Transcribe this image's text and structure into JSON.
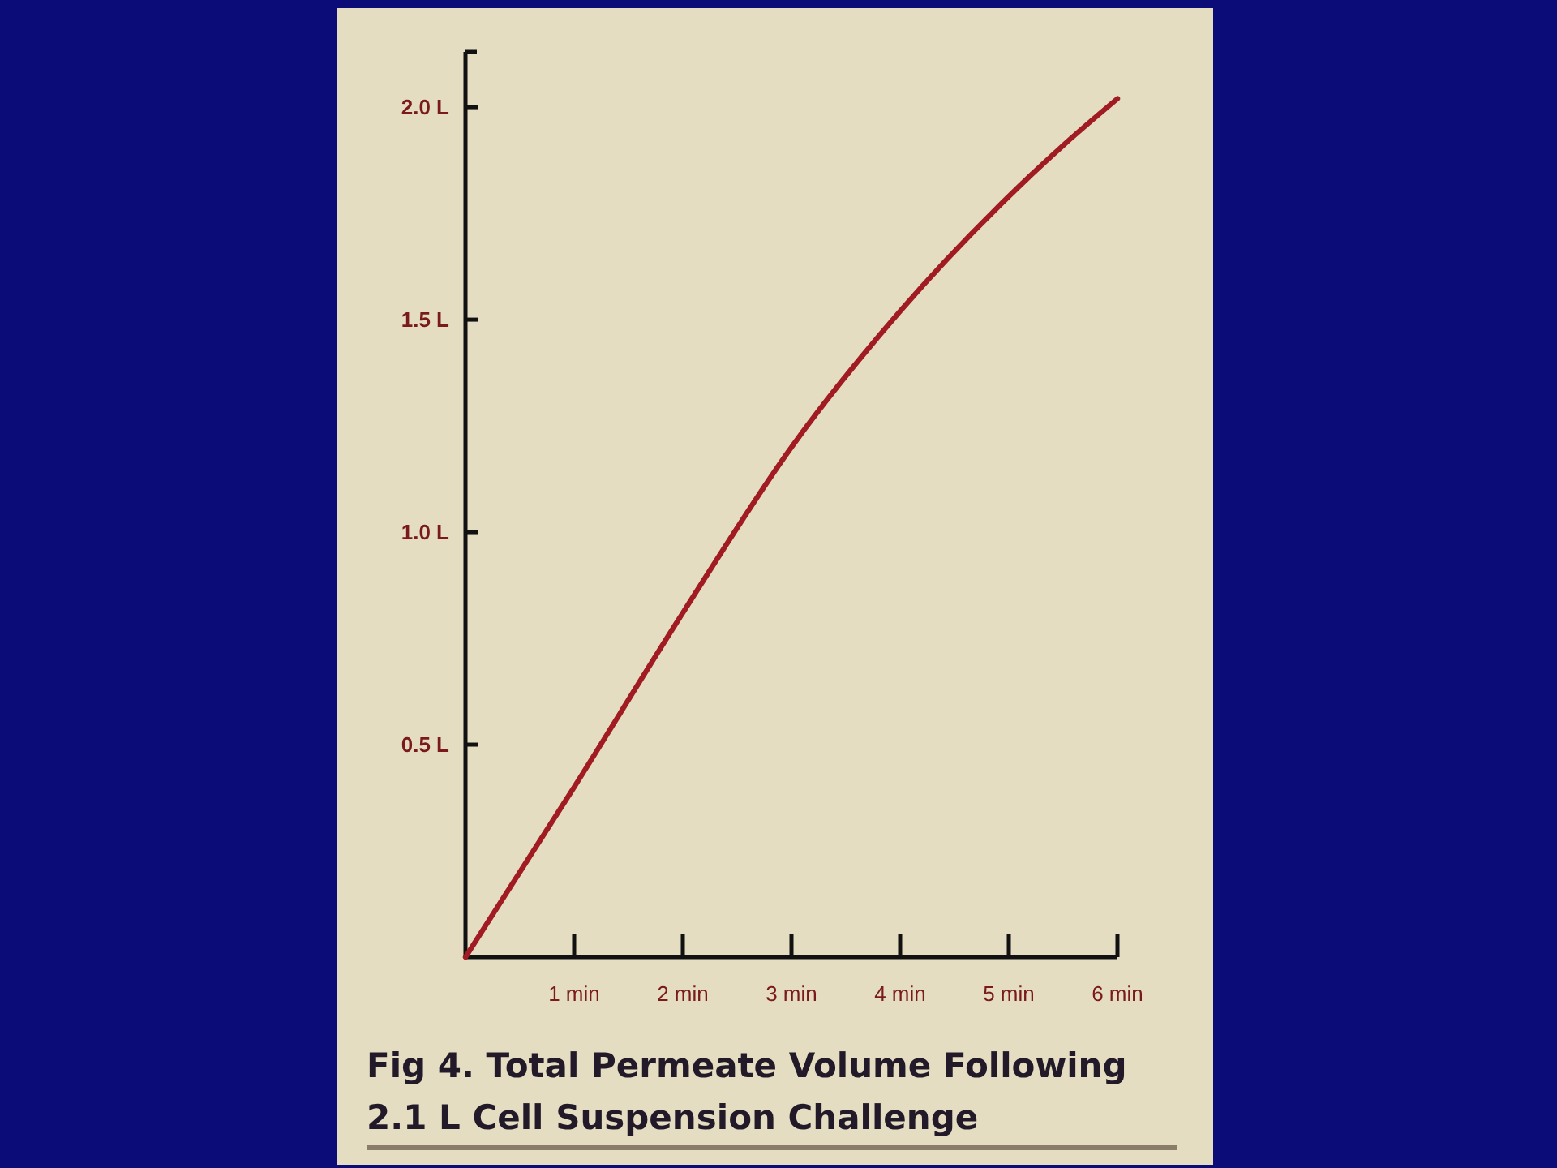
{
  "chart_data": {
    "type": "line",
    "title": "Fig 4. Total Permeate Volume Following 2.1 L Cell Suspension Challenge",
    "x": [
      0,
      1,
      2,
      3,
      4,
      5,
      5.5,
      6
    ],
    "series": [
      {
        "color": "#a01c22",
        "values": [
          0,
          0.4,
          0.81,
          1.2,
          1.52,
          1.79,
          1.91,
          2.02
        ]
      }
    ],
    "xlim": [
      0,
      6
    ],
    "xticks": [
      {
        "value": 1,
        "label": "1 min"
      },
      {
        "value": 2,
        "label": "2 min"
      },
      {
        "value": 3,
        "label": "3 min"
      },
      {
        "value": 4,
        "label": "4 min"
      },
      {
        "value": 5,
        "label": "5 min"
      },
      {
        "value": 6,
        "label": "6 min"
      }
    ],
    "ylim": [
      0,
      2.13
    ],
    "yticks": [
      {
        "value": 0.5,
        "label": "0.5 L"
      },
      {
        "value": 1,
        "label": "1.0 L"
      },
      {
        "value": 1.5,
        "label": "1.5 L"
      },
      {
        "value": 2,
        "label": "2.0 L"
      }
    ],
    "grid": false,
    "marker": "none",
    "line_style": "solid"
  }
}
